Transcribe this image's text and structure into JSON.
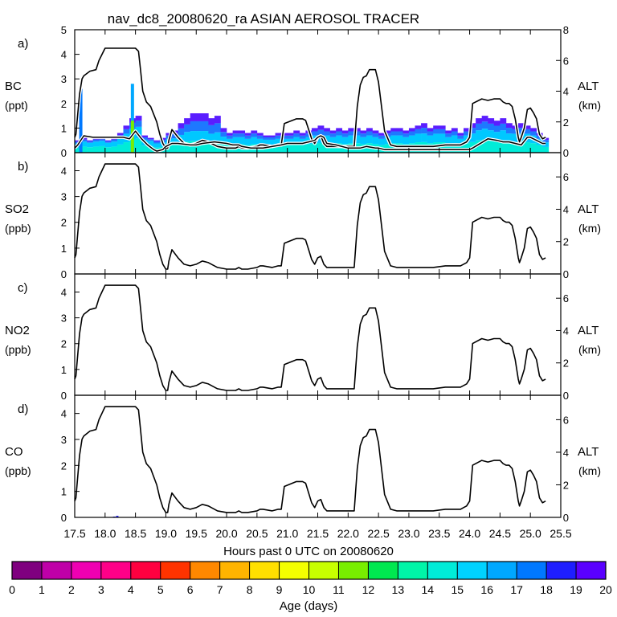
{
  "figure": {
    "title": "nav_dc8_20080620_ra ASIAN AEROSOL TRACER",
    "xlabel": "Hours past 0 UTC on 20080620",
    "colorbar_label": "Age (days)"
  },
  "colorbar": {
    "ticks": [
      "0",
      "1",
      "2",
      "3",
      "4",
      "5",
      "6",
      "7",
      "8",
      "9",
      "10",
      "11",
      "12",
      "13",
      "14",
      "15",
      "16",
      "17",
      "18",
      "19",
      "20"
    ],
    "colors": [
      "#7f007f",
      "#bf00a8",
      "#ef00b2",
      "#ff0088",
      "#ff0040",
      "#ff3300",
      "#ff8800",
      "#ffb400",
      "#ffe000",
      "#f4ff00",
      "#c8ff00",
      "#78ee00",
      "#00e850",
      "#00f5a8",
      "#00ecd8",
      "#00d2ff",
      "#00a8ff",
      "#0078ff",
      "#1e1eff",
      "#5a00ff"
    ]
  },
  "chart_data": [
    {
      "type": "area",
      "panel_label": "a)",
      "ylabel": [
        "BC",
        "(ppt)"
      ],
      "y2label": [
        "ALT",
        "(km)"
      ],
      "xlim": [
        17.5,
        25.5
      ],
      "ylim": [
        0,
        5
      ],
      "y2lim": [
        0,
        8
      ],
      "x_ticks": [
        "17.5",
        "18.0",
        "18.5",
        "19.0",
        "19.5",
        "20.0",
        "20.5",
        "21.0",
        "21.5",
        "22.0",
        "22.5",
        "23.0",
        "23.5",
        "24.0",
        "24.5",
        "25.0",
        "25.5"
      ],
      "y_ticks": [
        "0",
        "1",
        "2",
        "3",
        "4",
        "5"
      ],
      "y2_ticks": [
        "0",
        "2",
        "4",
        "6",
        "8"
      ],
      "series": [
        {
          "kind": "stacked_age_bars",
          "x": [
            17.55,
            17.65,
            17.75,
            17.85,
            17.95,
            18.05,
            18.15,
            18.25,
            18.35,
            18.45,
            18.55,
            18.65,
            18.75,
            18.85,
            18.95,
            19.05,
            19.15,
            19.25,
            19.35,
            19.45,
            19.55,
            19.65,
            19.75,
            19.85,
            19.95,
            20.05,
            20.15,
            20.25,
            20.35,
            20.45,
            20.55,
            20.65,
            20.75,
            20.85,
            20.95,
            21.05,
            21.15,
            21.25,
            21.35,
            21.45,
            21.55,
            21.65,
            21.75,
            21.85,
            21.95,
            22.05,
            22.15,
            22.25,
            22.35,
            22.45,
            22.55,
            22.65,
            22.75,
            22.85,
            22.95,
            23.05,
            23.15,
            23.25,
            23.35,
            23.45,
            23.55,
            23.65,
            23.75,
            23.85,
            23.95,
            24.05,
            24.15,
            24.25,
            24.35,
            24.45,
            24.55,
            24.65,
            24.75,
            24.85,
            24.95,
            25.05,
            25.15,
            25.25
          ],
          "total": [
            0.5,
            0.6,
            0.5,
            0.6,
            0.6,
            0.5,
            0.6,
            0.8,
            1.1,
            1.4,
            1.5,
            0.7,
            0.6,
            0.5,
            0.6,
            0.8,
            0.9,
            1.2,
            1.4,
            1.6,
            1.6,
            1.6,
            1.4,
            1.5,
            1.0,
            0.8,
            0.9,
            0.9,
            0.8,
            0.9,
            0.8,
            0.7,
            0.7,
            0.8,
            0.8,
            0.8,
            0.9,
            0.8,
            0.9,
            1.0,
            1.1,
            1.0,
            0.9,
            1.0,
            0.9,
            1.0,
            1.0,
            0.9,
            1.0,
            0.9,
            0.8,
            0.9,
            1.0,
            1.0,
            0.9,
            1.0,
            1.1,
            1.2,
            1.0,
            1.1,
            1.1,
            0.9,
            1.0,
            0.8,
            1.0,
            1.2,
            1.4,
            1.5,
            1.4,
            1.3,
            1.4,
            1.2,
            1.1,
            1.2,
            1.1,
            1.0,
            0.8,
            0.6
          ],
          "aged_fraction": [
            0.25,
            0.25,
            0.2,
            0.25,
            0.2,
            0.2,
            0.25,
            0.25,
            0.3,
            0.3,
            0.3,
            0.25,
            0.2,
            0.25,
            0.3,
            0.3,
            0.35,
            0.4,
            0.4,
            0.45,
            0.45,
            0.45,
            0.45,
            0.45,
            0.35,
            0.3,
            0.3,
            0.3,
            0.3,
            0.3,
            0.3,
            0.25,
            0.25,
            0.3,
            0.3,
            0.3,
            0.3,
            0.3,
            0.3,
            0.3,
            0.35,
            0.3,
            0.3,
            0.3,
            0.3,
            0.3,
            0.3,
            0.3,
            0.3,
            0.3,
            0.3,
            0.3,
            0.3,
            0.3,
            0.3,
            0.3,
            0.3,
            0.35,
            0.3,
            0.3,
            0.3,
            0.3,
            0.3,
            0.3,
            0.3,
            0.35,
            0.35,
            0.35,
            0.35,
            0.35,
            0.35,
            0.35,
            0.3,
            0.35,
            0.3,
            0.3,
            0.3,
            0.3
          ],
          "spikes": [
            {
              "x": 17.6,
              "value": 2.6,
              "age_days": 17
            },
            {
              "x": 18.45,
              "value": 2.8,
              "age_days": 16
            },
            {
              "x": 18.45,
              "value": 1.3,
              "age_days": 11
            }
          ]
        },
        {
          "kind": "altitude",
          "axis": "y2",
          "outline": true,
          "x": [
            17.5,
            17.52,
            17.58,
            17.62,
            17.65,
            17.75,
            17.85,
            17.9,
            17.95,
            18.0,
            18.05,
            18.5,
            18.55,
            18.58,
            18.62,
            18.68,
            18.75,
            18.85,
            18.9,
            18.95,
            19.0,
            19.03,
            19.05,
            19.1,
            19.2,
            19.3,
            19.4,
            19.5,
            19.6,
            19.7,
            19.85,
            20.0,
            20.15,
            20.2,
            20.25,
            20.35,
            20.5,
            20.55,
            20.6,
            20.75,
            20.85,
            20.9,
            20.95,
            21.15,
            21.25,
            21.3,
            21.35,
            21.4,
            21.45,
            21.5,
            21.55,
            21.6,
            21.65,
            21.75,
            21.9,
            22.1,
            22.15,
            22.2,
            22.25,
            22.3,
            22.35,
            22.45,
            22.5,
            22.55,
            22.6,
            22.7,
            22.8,
            22.9,
            23.0,
            23.2,
            23.4,
            23.6,
            23.75,
            23.85,
            23.9,
            23.95,
            24.0,
            24.05,
            24.2,
            24.3,
            24.4,
            24.5,
            24.55,
            24.6,
            24.65,
            24.7,
            24.75,
            24.8,
            24.82,
            24.85,
            24.9,
            24.95,
            25.0,
            25.05,
            25.1,
            25.15,
            25.2,
            25.25
          ],
          "values": [
            1.0,
            1.2,
            3.8,
            4.8,
            5.0,
            5.3,
            5.4,
            6.0,
            6.4,
            6.8,
            6.8,
            6.8,
            6.6,
            5.5,
            4.0,
            3.3,
            3.0,
            2.0,
            1.2,
            0.6,
            0.3,
            0.3,
            0.8,
            1.5,
            1.0,
            0.6,
            0.5,
            0.6,
            0.8,
            0.7,
            0.4,
            0.3,
            0.3,
            0.4,
            0.3,
            0.3,
            0.4,
            0.5,
            0.5,
            0.4,
            0.5,
            0.5,
            1.9,
            2.2,
            2.2,
            2.1,
            1.5,
            0.9,
            0.6,
            1.0,
            1.1,
            0.6,
            0.4,
            0.4,
            0.4,
            0.4,
            3.0,
            4.4,
            4.9,
            5.0,
            5.4,
            5.4,
            4.6,
            3.0,
            1.4,
            0.5,
            0.4,
            0.4,
            0.4,
            0.4,
            0.4,
            0.5,
            0.5,
            0.5,
            0.6,
            0.7,
            1.0,
            3.2,
            3.5,
            3.4,
            3.5,
            3.5,
            3.3,
            3.2,
            3.2,
            3.0,
            2.2,
            1.0,
            0.7,
            1.0,
            1.6,
            2.8,
            2.9,
            2.6,
            2.2,
            1.2,
            0.9,
            1.0
          ]
        },
        {
          "kind": "secondary_line",
          "axis": "y2",
          "x": [
            17.5,
            17.55,
            17.65,
            17.8,
            18.0,
            18.3,
            18.4,
            18.5,
            18.6,
            18.7,
            18.8,
            18.85,
            18.95,
            19.0,
            19.05,
            19.1,
            19.2,
            19.4,
            19.5,
            19.6,
            19.8,
            20.0,
            20.1,
            20.2,
            20.25,
            20.4,
            20.6,
            20.9,
            21.0,
            21.15,
            21.25,
            21.35,
            21.45,
            21.5,
            21.55,
            21.6,
            21.65,
            21.8,
            22.0,
            22.2,
            22.3,
            22.45,
            22.5,
            22.6,
            22.7,
            22.9,
            23.2,
            23.5,
            23.8,
            24.0,
            24.05,
            24.3,
            24.45,
            24.55,
            24.65,
            24.75,
            24.85,
            24.95,
            25.0,
            25.1,
            25.2,
            25.25
          ],
          "values": [
            0.3,
            0.5,
            1.1,
            1.0,
            1.0,
            1.0,
            0.9,
            1.4,
            0.9,
            0.5,
            0.2,
            0.1,
            0.2,
            0.4,
            0.5,
            0.6,
            0.6,
            0.5,
            0.5,
            0.6,
            0.7,
            0.6,
            0.5,
            0.5,
            0.4,
            0.3,
            0.3,
            0.5,
            0.6,
            0.6,
            0.6,
            0.7,
            0.8,
            1.0,
            1.1,
            1.0,
            0.6,
            0.5,
            0.3,
            0.3,
            0.4,
            0.3,
            0.3,
            0.2,
            0.2,
            0.2,
            0.2,
            0.2,
            0.2,
            0.2,
            0.3,
            0.9,
            0.8,
            0.7,
            0.7,
            0.6,
            0.5,
            1.0,
            1.0,
            0.8,
            0.6,
            0.6
          ]
        }
      ]
    },
    {
      "type": "line",
      "panel_label": "b)",
      "ylabel": [
        "SO2",
        "(ppb)"
      ],
      "y2label": [
        "ALT",
        "(km)"
      ],
      "xlim": [
        17.5,
        25.5
      ],
      "ylim": [
        0,
        4.7
      ],
      "y2lim": [
        0,
        7.5
      ],
      "y_ticks": [
        "0",
        "1",
        "2",
        "3",
        "4"
      ],
      "y2_ticks": [
        "0",
        "2",
        "4",
        "6"
      ],
      "series": [
        {
          "kind": "altitude",
          "axis": "y2",
          "ref": "a"
        }
      ]
    },
    {
      "type": "line",
      "panel_label": "c)",
      "ylabel": [
        "NO2",
        "(ppb)"
      ],
      "y2label": [
        "ALT",
        "(km)"
      ],
      "xlim": [
        17.5,
        25.5
      ],
      "ylim": [
        0,
        4.7
      ],
      "y2lim": [
        0,
        7.5
      ],
      "y_ticks": [
        "0",
        "1",
        "2",
        "3",
        "4"
      ],
      "y2_ticks": [
        "0",
        "2",
        "4",
        "6"
      ],
      "series": [
        {
          "kind": "altitude",
          "axis": "y2",
          "ref": "a"
        }
      ]
    },
    {
      "type": "line",
      "panel_label": "d)",
      "ylabel": [
        "CO",
        "(ppb)"
      ],
      "y2label": [
        "ALT",
        "(km)"
      ],
      "xlim": [
        17.5,
        25.5
      ],
      "ylim": [
        0,
        4.7
      ],
      "y2lim": [
        0,
        7.5
      ],
      "y_ticks": [
        "0",
        "1",
        "2",
        "3",
        "4"
      ],
      "y2_ticks": [
        "0",
        "2",
        "4",
        "6"
      ],
      "series": [
        {
          "kind": "altitude",
          "axis": "y2",
          "ref": "a"
        },
        {
          "kind": "trace",
          "x": [
            18.15,
            18.2
          ],
          "values": [
            0.03,
            0.06
          ],
          "age_days": 18
        }
      ]
    }
  ]
}
